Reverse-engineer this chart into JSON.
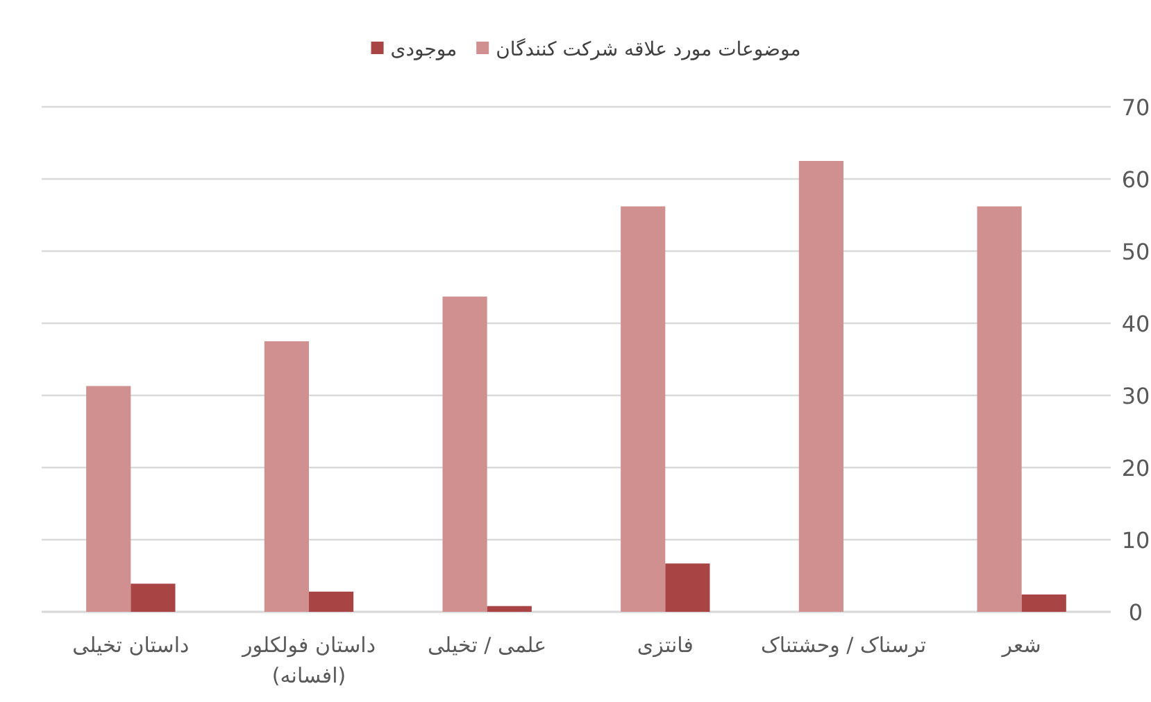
{
  "chart_data": {
    "type": "bar",
    "categories": [
      "داستان تخیلی",
      "داستان فولکلور\n(افسانه)",
      "علمی / تخیلی",
      "فانتزی",
      "ترسناک / وحشتناک",
      "شعر"
    ],
    "series": [
      {
        "name": "موضوعات مورد علاقه شرکت کنندگان",
        "color": "#d09090",
        "values": [
          31.3,
          37.5,
          43.7,
          56.2,
          62.5,
          56.2
        ]
      },
      {
        "name": "موجودی",
        "color": "#a84444",
        "values": [
          3.9,
          2.8,
          0.8,
          6.7,
          0,
          2.4
        ]
      }
    ],
    "ylim": [
      0,
      70
    ],
    "yticks": [
      0,
      10,
      20,
      30,
      40,
      50,
      60,
      70
    ],
    "grid": "y",
    "legend": "top"
  }
}
